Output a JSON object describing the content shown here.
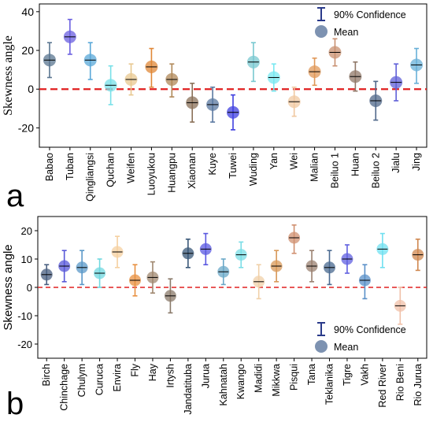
{
  "chart_data": [
    {
      "type": "scatter",
      "panel_label": "a",
      "ylabel": "Skewness angle",
      "xlabel": "",
      "ylim": [
        -30,
        44
      ],
      "yticks": [
        -20,
        0,
        20,
        40
      ],
      "zero_line": 0,
      "legend": {
        "position": "top-right",
        "confidence_label": "90% Confidence",
        "mean_label": "Mean"
      },
      "categories": [
        "Babao",
        "Tuban",
        "Qingliangsi",
        "Quchan",
        "Weifen",
        "Luoyukou",
        "Huangpu",
        "Xiaonan",
        "Kuye",
        "Tuwei",
        "Wuding",
        "Yan",
        "Wei",
        "Malian",
        "Beiluo 1",
        "Huan",
        "Beiluo 2",
        "Jialu",
        "Jing"
      ],
      "means": [
        15,
        27,
        15,
        2,
        5,
        11.5,
        5,
        -7,
        -8,
        -12,
        14,
        6,
        -6.5,
        9,
        19,
        6.5,
        -6,
        3.5,
        12.5
      ],
      "ci_low": [
        6,
        18,
        5,
        -8,
        -3,
        1,
        -4,
        -17,
        -17,
        -21,
        4,
        -1,
        -14,
        2,
        12,
        -1,
        -16,
        -6,
        3
      ],
      "ci_high": [
        24,
        36,
        24,
        12,
        13,
        21,
        13,
        3,
        1,
        -3,
        24,
        13,
        1,
        16,
        26,
        14,
        4,
        13,
        21
      ],
      "colors": [
        "#5a7590",
        "#6a5fe0",
        "#5aa8d8",
        "#78e0e8",
        "#e8c890",
        "#e08838",
        "#b08858",
        "#8a7058",
        "#5a78a0",
        "#4040e0",
        "#78c8d0",
        "#78e8f0",
        "#f0c8a0",
        "#e09858",
        "#c89070",
        "#907868",
        "#50688a",
        "#6060d8",
        "#68b0d8"
      ]
    },
    {
      "type": "scatter",
      "panel_label": "b",
      "ylabel": "Skewness angle",
      "xlabel": "",
      "ylim": [
        -25,
        25
      ],
      "yticks": [
        -20,
        -10,
        0,
        10,
        20
      ],
      "zero_line": 0,
      "legend": {
        "position": "bottom-right",
        "confidence_label": "90% Confidence",
        "mean_label": "Mean"
      },
      "categories": [
        "Birch",
        "Chinchage",
        "Chulym",
        "Curuca",
        "Envira",
        "Fly",
        "Hay",
        "Irtysh",
        "Jandatituba",
        "Jurua",
        "Kahnatah",
        "Kwango",
        "Madidi",
        "Mikkwa",
        "Pisqui",
        "Tana",
        "Teklanika",
        "Tigre",
        "Vakh",
        "Red River",
        "Rio Beni",
        "Rio Jurua"
      ],
      "means": [
        4.5,
        7.5,
        7,
        5,
        12.5,
        2.5,
        3.5,
        -3,
        12,
        13.5,
        5.5,
        11.5,
        2,
        7.5,
        17.5,
        7.5,
        7,
        10,
        2.5,
        13.5,
        -6.5,
        11.5
      ],
      "ci_low": [
        1,
        2,
        1,
        0,
        7,
        -3,
        -2,
        -9,
        7,
        8,
        1,
        7,
        -4,
        2,
        12,
        2,
        1,
        5,
        -4,
        7,
        -13,
        6
      ],
      "ci_high": [
        8,
        13,
        13,
        10,
        18,
        8,
        9,
        3,
        17,
        19,
        10,
        16,
        8,
        13,
        22,
        13,
        13,
        15,
        8,
        19,
        0,
        17
      ],
      "colors": [
        "#4a5f80",
        "#5858d8",
        "#5a98c8",
        "#70d8e0",
        "#f5d0a0",
        "#e89040",
        "#a08870",
        "#8a7a6a",
        "#3a5878",
        "#5a58e0",
        "#6aa8c8",
        "#7adde6",
        "#f0d0a8",
        "#d89858",
        "#d09070",
        "#9a8070",
        "#4a6a90",
        "#6060e0",
        "#5a90c8",
        "#70e0f0",
        "#f0c0a8",
        "#d08850"
      ]
    }
  ]
}
